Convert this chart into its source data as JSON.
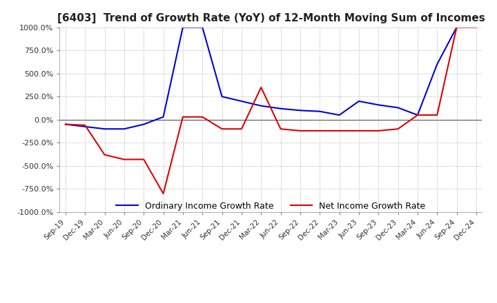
{
  "title": "[6403]  Trend of Growth Rate (YoY) of 12-Month Moving Sum of Incomes",
  "title_fontsize": 11,
  "ylim": [
    -1000,
    1000
  ],
  "yticks": [
    1000,
    750,
    500,
    250,
    0,
    -250,
    -500,
    -750,
    -1000
  ],
  "background_color": "#ffffff",
  "plot_bg_color": "#ffffff",
  "grid_color": "#aaaaaa",
  "ordinary_color": "#0000dd",
  "net_color": "#dd0000",
  "legend_ordinary": "Ordinary Income Growth Rate",
  "legend_net": "Net Income Growth Rate",
  "x_labels": [
    "Sep-19",
    "Dec-19",
    "Mar-20",
    "Jun-20",
    "Sep-20",
    "Dec-20",
    "Mar-21",
    "Jun-21",
    "Sep-21",
    "Dec-21",
    "Mar-22",
    "Jun-22",
    "Sep-22",
    "Dec-22",
    "Mar-23",
    "Jun-23",
    "Sep-23",
    "Dec-23",
    "Mar-24",
    "Jun-24",
    "Sep-24",
    "Dec-24"
  ],
  "ordinary_income_growth": [
    -50,
    -75,
    -100,
    -100,
    -50,
    30,
    1000,
    1000,
    250,
    200,
    150,
    120,
    100,
    90,
    50,
    200,
    160,
    130,
    50,
    600,
    1000,
    null
  ],
  "net_income_growth": [
    -50,
    -60,
    -380,
    -430,
    -430,
    -800,
    30,
    30,
    -100,
    -100,
    350,
    -100,
    -120,
    -120,
    -120,
    -120,
    -120,
    -100,
    50,
    50,
    1000,
    1000
  ]
}
